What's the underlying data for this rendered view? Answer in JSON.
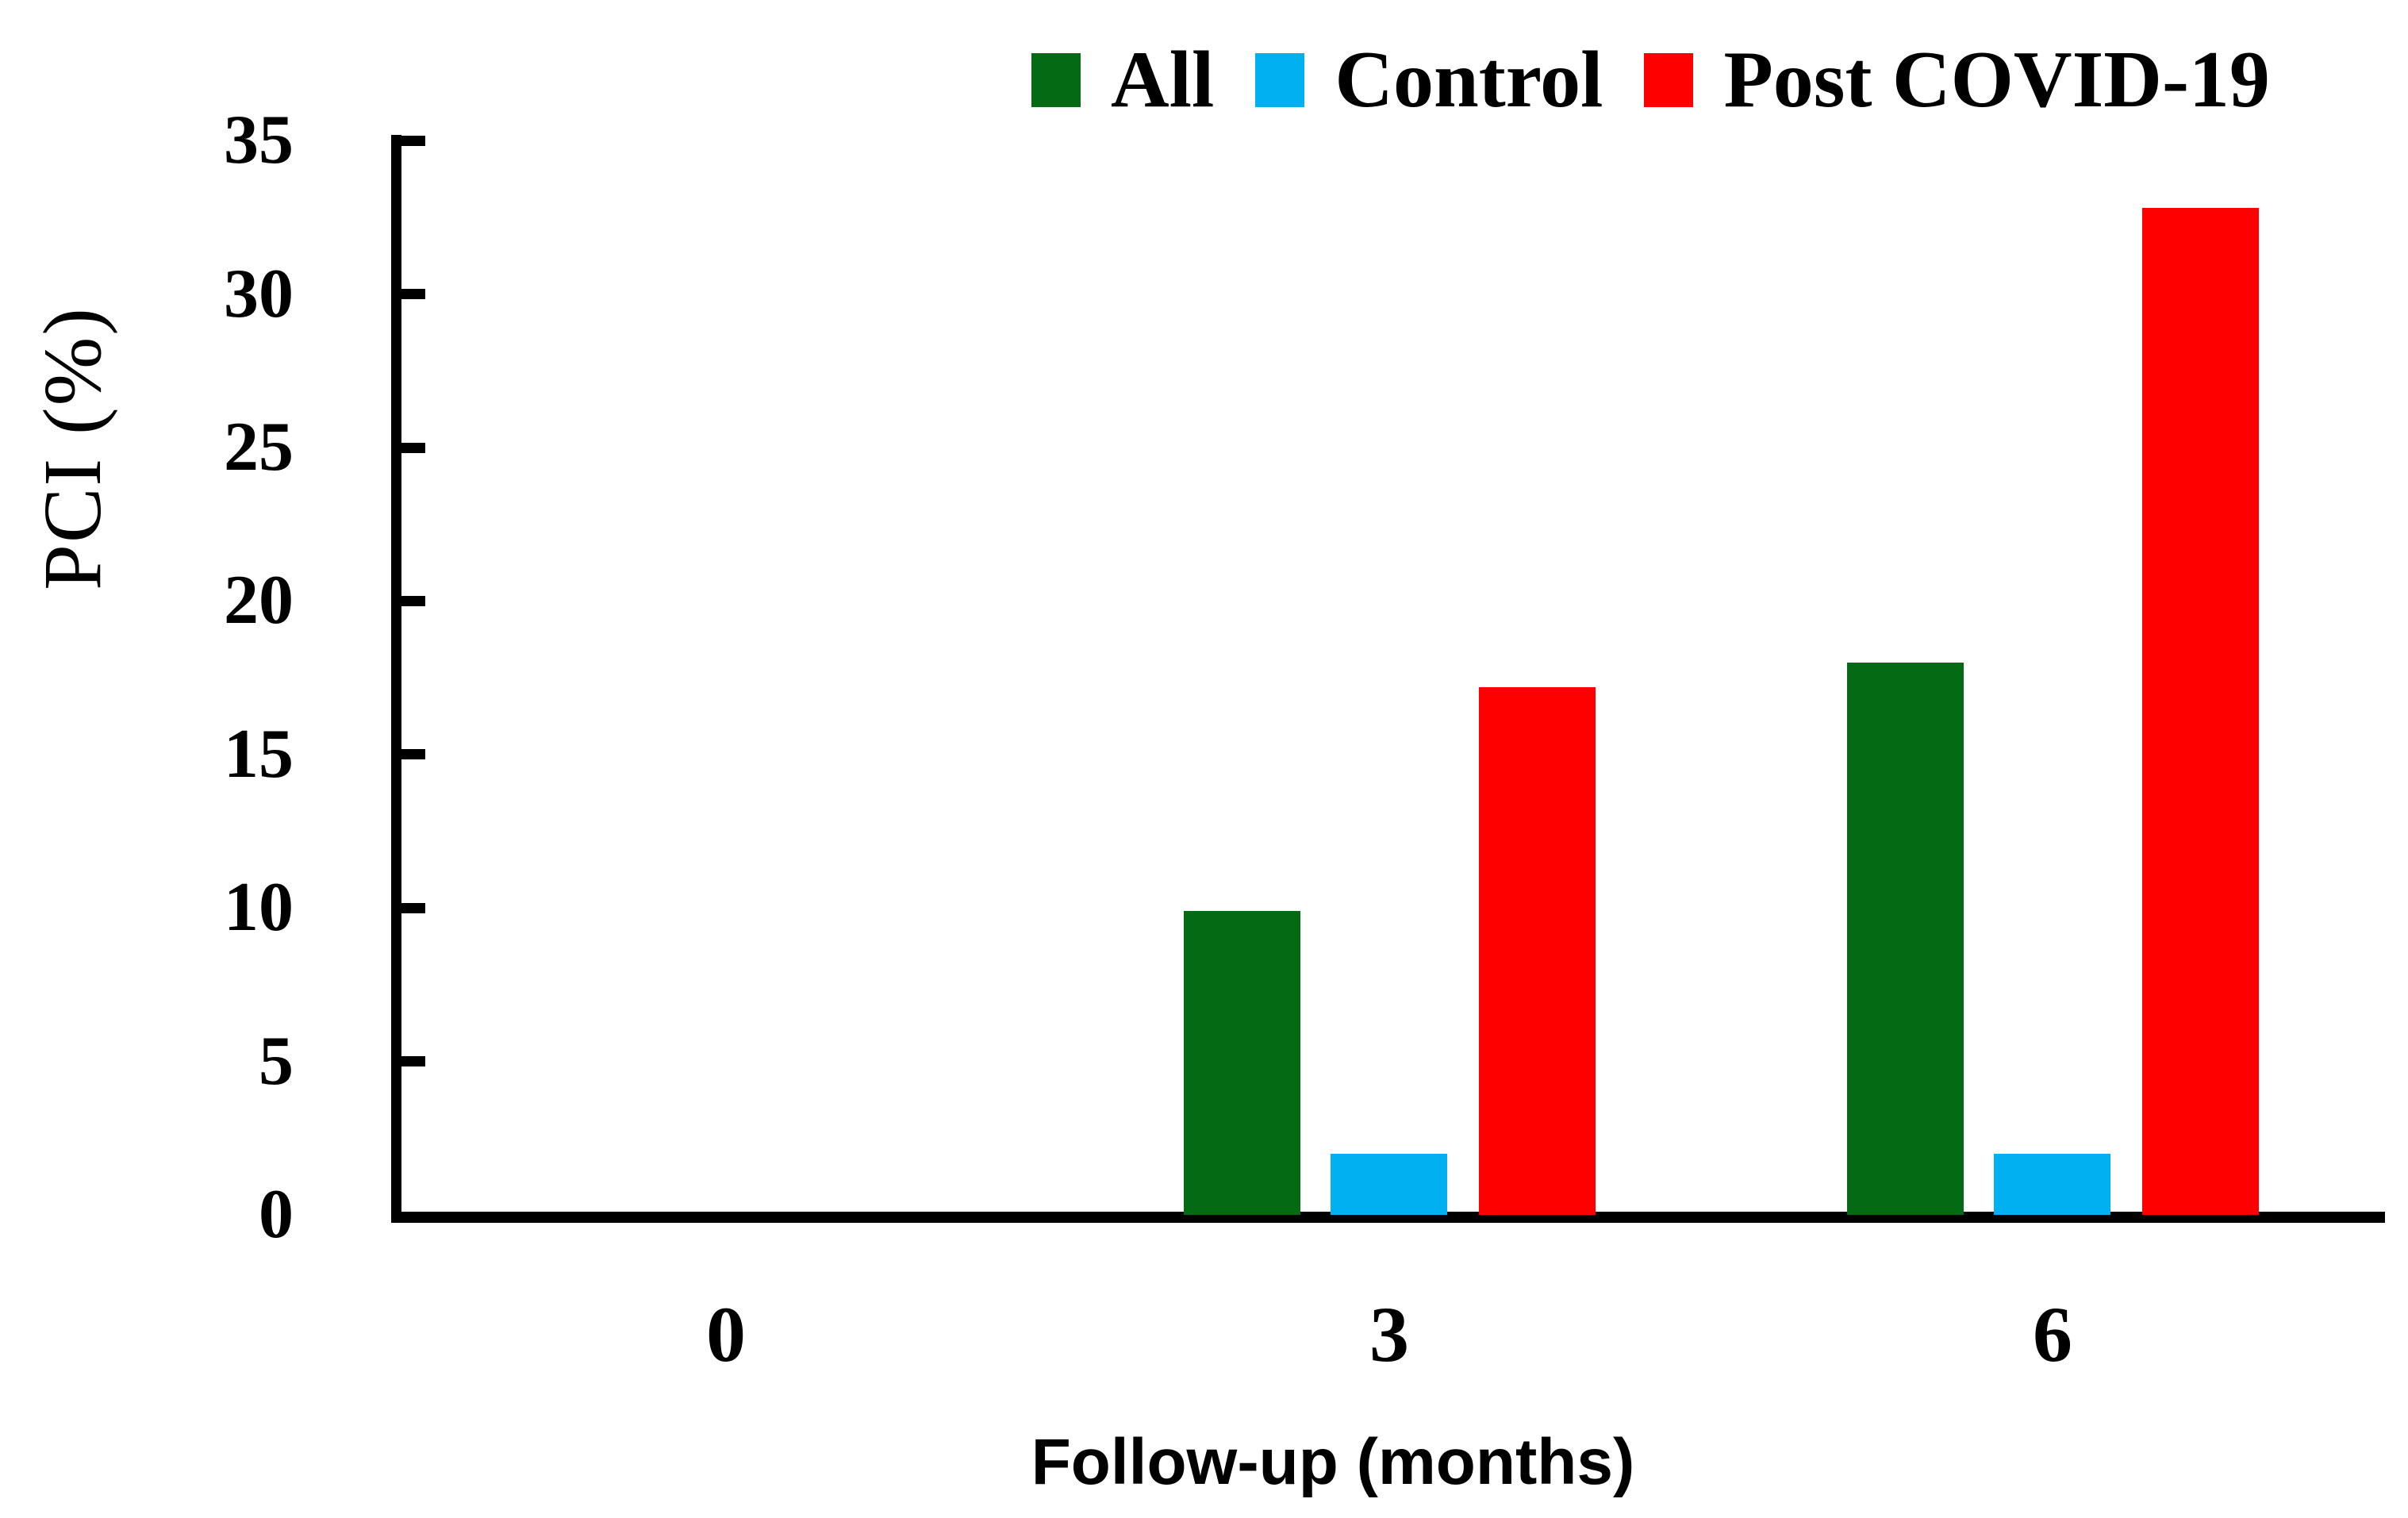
{
  "chart_data": {
    "type": "bar",
    "title": "",
    "categories": [
      "0",
      "3",
      "6"
    ],
    "series": [
      {
        "name": "All",
        "color": "#046a14",
        "values": [
          0,
          9.9,
          18
        ]
      },
      {
        "name": "Control",
        "color": "#00b0f0",
        "values": [
          0,
          2,
          2
        ]
      },
      {
        "name": "Post COVID-19",
        "color": "#fe0000",
        "values": [
          0,
          17.2,
          32.8
        ]
      }
    ],
    "xlabel": "Follow-up (months)",
    "ylabel": "PCI (%)",
    "ylim": [
      0,
      35
    ],
    "yticks": [
      0,
      5,
      10,
      15,
      20,
      25,
      30,
      35
    ],
    "grid": false,
    "legend_position": "top-right",
    "axis_color": "#000000",
    "text_color": "#000000"
  }
}
